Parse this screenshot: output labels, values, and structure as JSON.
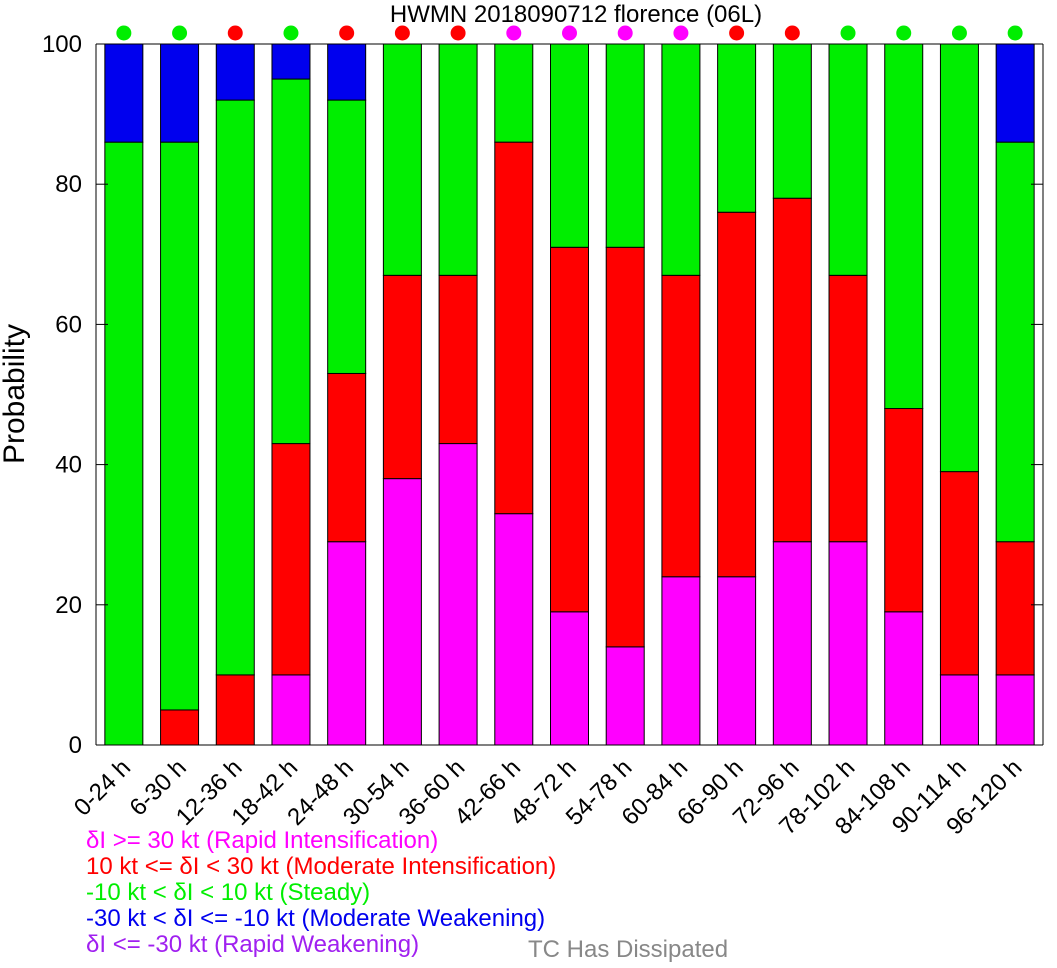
{
  "chart_data": {
    "type": "bar",
    "stacked": true,
    "title": "HWMN 2018090712 florence (06L)",
    "xlabel": "",
    "ylabel": "Probability",
    "ylim": [
      0,
      100
    ],
    "yticks": [
      0,
      20,
      40,
      60,
      80,
      100
    ],
    "grid": false,
    "categories": [
      "0-24 h",
      "6-30 h",
      "12-36 h",
      "18-42 h",
      "24-48 h",
      "30-54 h",
      "36-60 h",
      "42-66 h",
      "48-72 h",
      "54-78 h",
      "60-84 h",
      "66-90 h",
      "72-96 h",
      "78-102 h",
      "84-108 h",
      "90-114 h",
      "96-120 h"
    ],
    "series": [
      {
        "name": "δI >= 30 kt (Rapid Intensification)",
        "color": "#ff00ff",
        "values": [
          0,
          0,
          0,
          10,
          29,
          38,
          43,
          33,
          19,
          14,
          24,
          24,
          29,
          29,
          19,
          10,
          10
        ]
      },
      {
        "name": "10 kt <= δI < 30 kt (Moderate Intensification)",
        "color": "#ff0000",
        "values": [
          0,
          5,
          10,
          33,
          24,
          29,
          24,
          53,
          52,
          57,
          43,
          52,
          49,
          38,
          29,
          29,
          19
        ]
      },
      {
        "name": "-10 kt < δI < 10 kt (Steady)",
        "color": "#00ee00",
        "values": [
          86,
          81,
          82,
          52,
          39,
          33,
          33,
          14,
          29,
          29,
          33,
          24,
          22,
          33,
          52,
          61,
          57
        ]
      },
      {
        "name": "-30 kt < δI <= -10 kt (Moderate Weakening)",
        "color": "#0000ee",
        "values": [
          14,
          14,
          8,
          5,
          8,
          0,
          0,
          0,
          0,
          0,
          0,
          0,
          0,
          0,
          0,
          0,
          14
        ]
      },
      {
        "name": "δI <= -30 kt (Rapid Weakening)",
        "color": "#a020f0",
        "values": [
          0,
          0,
          0,
          0,
          0,
          0,
          0,
          0,
          0,
          0,
          0,
          0,
          0,
          0,
          0,
          0,
          0
        ]
      }
    ],
    "indicator_dots": [
      "#00ee00",
      "#00ee00",
      "#ff0000",
      "#00ee00",
      "#ff0000",
      "#ff0000",
      "#ff0000",
      "#ff00ff",
      "#ff00ff",
      "#ff00ff",
      "#ff00ff",
      "#ff0000",
      "#ff0000",
      "#00ee00",
      "#00ee00",
      "#00ee00",
      "#00ee00"
    ],
    "legend_placement": "bottom-left",
    "dissipated_label": "TC Has Dissipated",
    "dissipated_color": "#888888"
  }
}
